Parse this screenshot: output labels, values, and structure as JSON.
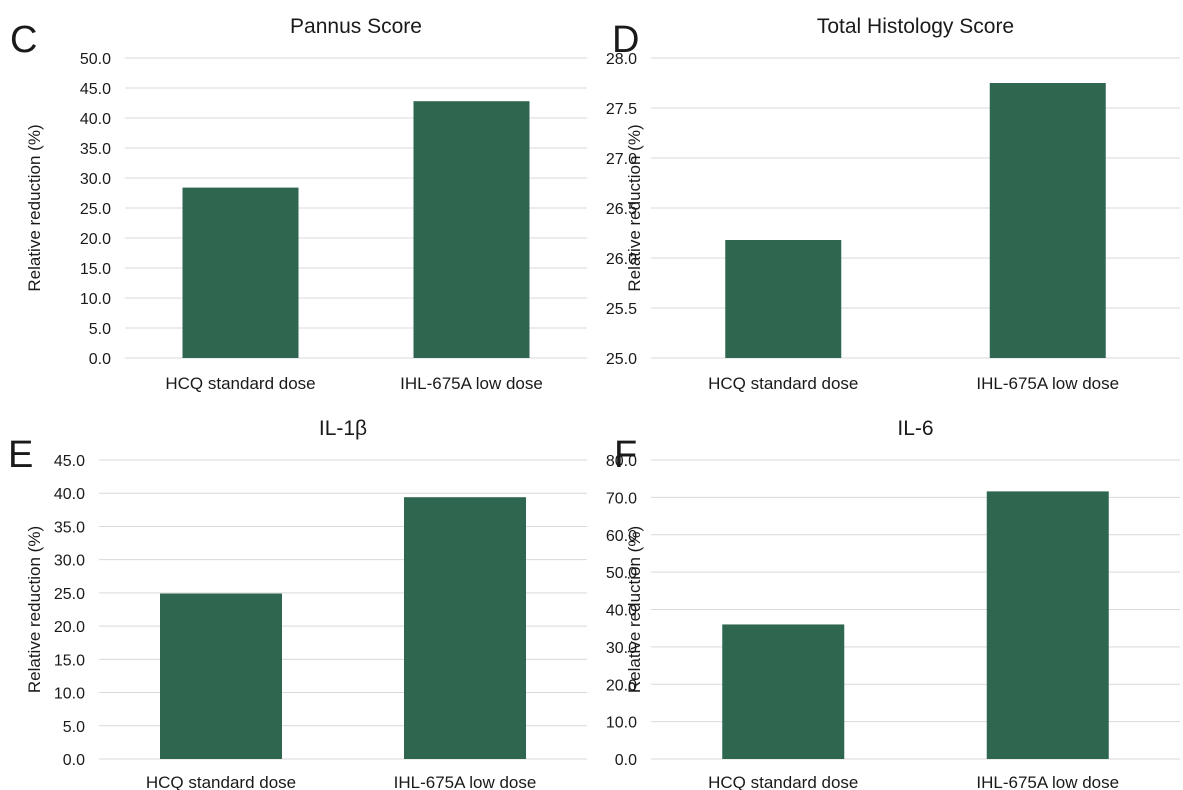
{
  "colors": {
    "bar": "#2e6650",
    "grid": "#d9d9d9",
    "text": "#1a1a1a"
  },
  "chart_data": [
    {
      "type": "bar",
      "panel": "C",
      "title": "Pannus Score",
      "ylabel": "Relative reduction (%)",
      "xlabel": "",
      "categories": [
        "HCQ standard dose",
        "IHL-675A low dose"
      ],
      "values": [
        28.4,
        42.8
      ],
      "ylim": [
        0,
        50
      ],
      "yticks": [
        "0.0",
        "5.0",
        "10.0",
        "15.0",
        "20.0",
        "25.0",
        "30.0",
        "35.0",
        "40.0",
        "45.0",
        "50.0"
      ],
      "grid": true
    },
    {
      "type": "bar",
      "panel": "D",
      "title": "Total Histology Score",
      "ylabel": "Relative reduction (%)",
      "xlabel": "",
      "categories": [
        "HCQ standard dose",
        "IHL-675A low dose"
      ],
      "values": [
        26.18,
        27.75
      ],
      "ylim": [
        25,
        28
      ],
      "yticks": [
        "25.0",
        "25.5",
        "26.0",
        "26.5",
        "27.0",
        "27.5",
        "28.0"
      ],
      "grid": true
    },
    {
      "type": "bar",
      "panel": "E",
      "title": "IL-1β",
      "ylabel": "Relative reduction (%)",
      "xlabel": "",
      "categories": [
        "HCQ standard dose",
        "IHL-675A low dose"
      ],
      "values": [
        24.9,
        39.4
      ],
      "ylim": [
        0,
        45
      ],
      "yticks": [
        "0.0",
        "5.0",
        "10.0",
        "15.0",
        "20.0",
        "25.0",
        "30.0",
        "35.0",
        "40.0",
        "45.0"
      ],
      "grid": true
    },
    {
      "type": "bar",
      "panel": "F",
      "title": "IL-6",
      "ylabel": "Relative reduction (%)",
      "xlabel": "",
      "categories": [
        "HCQ standard dose",
        "IHL-675A low dose"
      ],
      "values": [
        36.0,
        71.6
      ],
      "ylim": [
        0,
        80
      ],
      "yticks": [
        "0.0",
        "10.0",
        "20.0",
        "30.0",
        "40.0",
        "50.0",
        "60.0",
        "70.0",
        "80.0"
      ],
      "grid": true
    }
  ]
}
